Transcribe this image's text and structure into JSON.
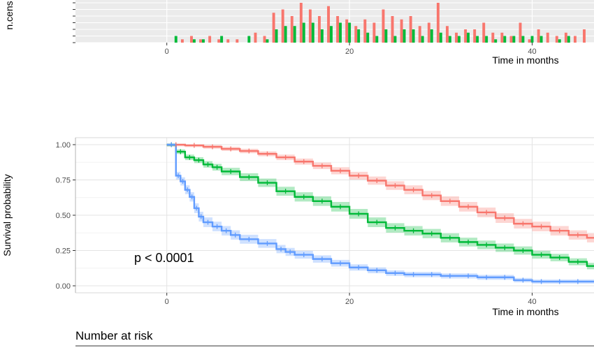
{
  "chart_data": [
    {
      "type": "bar",
      "panel": "censoring",
      "ylabel": "n.cens",
      "xlabel": "Time in months",
      "xlim": [
        -10,
        47
      ],
      "xticks": [
        0,
        20,
        40
      ],
      "ylim": [
        0,
        6
      ],
      "grid": true,
      "colors": [
        "#F8766D",
        "#00BA38",
        "#619CFF"
      ],
      "x": [
        1,
        2,
        3,
        4,
        5,
        6,
        7,
        8,
        9,
        10,
        11,
        12,
        13,
        14,
        15,
        16,
        17,
        18,
        19,
        20,
        21,
        22,
        23,
        24,
        25,
        26,
        27,
        28,
        29,
        30,
        31,
        32,
        33,
        34,
        35,
        36,
        37,
        38,
        39,
        40,
        41,
        42,
        43,
        44,
        45,
        46
      ],
      "series": [
        {
          "values": [
            0,
            0.5,
            1,
            0.5,
            1,
            0.5,
            0.5,
            0.5,
            0,
            1.5,
            1,
            4.5,
            5,
            4,
            6,
            5,
            4,
            5.5,
            4,
            3.5,
            2.5,
            3.5,
            3,
            5,
            4,
            3.5,
            4,
            2.5,
            3,
            6,
            2.5,
            1.5,
            2,
            2,
            3,
            1.5,
            1.5,
            1,
            3,
            0.5,
            2,
            1.5,
            1,
            1.5,
            1,
            2
          ]
        },
        {
          "values": [
            1,
            0,
            0.5,
            0.5,
            0,
            1,
            0,
            0,
            1,
            0,
            0.5,
            2,
            2.5,
            2.5,
            3,
            3,
            2,
            2.5,
            3,
            3,
            2,
            1.5,
            1,
            2,
            1,
            2,
            2,
            1,
            2,
            1.5,
            1,
            1,
            1.5,
            1,
            1,
            0.5,
            1,
            1,
            1,
            1,
            1,
            0,
            0.5,
            1,
            0,
            0
          ]
        },
        {
          "values": [
            0,
            0,
            0,
            0,
            0,
            0,
            0,
            0,
            0,
            0,
            0,
            0,
            0,
            0,
            0,
            0,
            0,
            0,
            0,
            0,
            0,
            0,
            0,
            0,
            0,
            0,
            0,
            0,
            0,
            0,
            0,
            0,
            0,
            0,
            0,
            0,
            0,
            0,
            0,
            0,
            0,
            0,
            0,
            0,
            0,
            0
          ]
        }
      ]
    },
    {
      "type": "line",
      "panel": "survival",
      "step": true,
      "ylabel": "Survival probability",
      "xlabel": "Time in months",
      "xlim": [
        -10,
        47
      ],
      "xticks": [
        0,
        20,
        40
      ],
      "ylim": [
        0,
        1
      ],
      "yticks": [
        0,
        0.25,
        0.5,
        0.75,
        1
      ],
      "ytick_labels": [
        "0.00",
        "0.25",
        "0.50",
        "0.75",
        "1.00"
      ],
      "grid": true,
      "confidence_band": true,
      "annotation": "p < 0.0001",
      "series": [
        {
          "color": "#F8766D",
          "x": [
            0,
            2,
            4,
            6,
            8,
            10,
            12,
            14,
            16,
            18,
            20,
            22,
            24,
            26,
            28,
            30,
            32,
            34,
            36,
            38,
            40,
            42,
            44,
            46
          ],
          "y": [
            1.0,
            0.995,
            0.985,
            0.97,
            0.955,
            0.935,
            0.91,
            0.88,
            0.85,
            0.815,
            0.78,
            0.745,
            0.71,
            0.68,
            0.64,
            0.6,
            0.56,
            0.52,
            0.48,
            0.44,
            0.42,
            0.39,
            0.36,
            0.34
          ]
        },
        {
          "color": "#00BA38",
          "x": [
            0,
            1,
            2,
            3,
            4,
            5,
            6,
            8,
            10,
            12,
            14,
            16,
            18,
            20,
            22,
            24,
            26,
            28,
            30,
            32,
            34,
            36,
            38,
            40,
            42,
            44,
            46
          ],
          "y": [
            1.0,
            0.95,
            0.91,
            0.89,
            0.86,
            0.84,
            0.81,
            0.77,
            0.73,
            0.67,
            0.63,
            0.6,
            0.56,
            0.51,
            0.45,
            0.41,
            0.39,
            0.37,
            0.34,
            0.31,
            0.29,
            0.27,
            0.25,
            0.22,
            0.2,
            0.17,
            0.14
          ]
        },
        {
          "color": "#619CFF",
          "x": [
            0,
            1,
            1.5,
            2,
            2.5,
            3,
            3.5,
            4,
            5,
            6,
            7,
            8,
            10,
            12,
            13,
            14,
            16,
            18,
            20,
            22,
            24,
            26,
            28,
            30,
            32,
            34,
            36,
            38,
            40,
            42,
            44,
            46
          ],
          "y": [
            1.0,
            0.78,
            0.74,
            0.68,
            0.63,
            0.55,
            0.49,
            0.45,
            0.42,
            0.39,
            0.36,
            0.33,
            0.3,
            0.26,
            0.24,
            0.22,
            0.19,
            0.16,
            0.13,
            0.11,
            0.09,
            0.08,
            0.08,
            0.07,
            0.07,
            0.06,
            0.06,
            0.04,
            0.03,
            0.03,
            0.03,
            0.03
          ]
        }
      ]
    }
  ],
  "risk_table": {
    "title": "Number at risk"
  }
}
